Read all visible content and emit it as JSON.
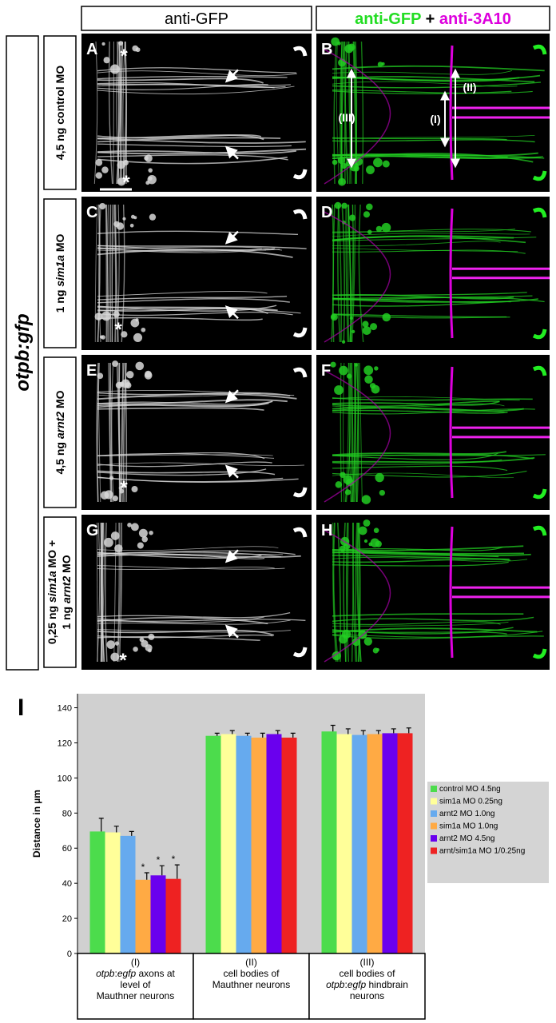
{
  "figure": {
    "column_headers": {
      "left": "anti-GFP",
      "right": [
        {
          "text": "anti-GFP",
          "color": "#22dd22"
        },
        {
          "text": " + ",
          "color": "#000000"
        },
        {
          "text": "anti-3A10",
          "color": "#dd00dd"
        }
      ]
    },
    "side_label": "otpb:gfp",
    "row_labels": [
      [
        [
          {
            "text": "4,5 ng control MO"
          }
        ]
      ],
      [
        [
          {
            "text": "1 ng "
          },
          {
            "text": "sim1a",
            "italic": true
          },
          {
            "text": " MO"
          }
        ]
      ],
      [
        [
          {
            "text": "4,5 ng "
          },
          {
            "text": "arnt2",
            "italic": true
          },
          {
            "text": " MO"
          }
        ]
      ],
      [
        [
          {
            "text": "0,25 ng "
          },
          {
            "text": "sim1a",
            "italic": true
          },
          {
            "text": " MO +"
          }
        ],
        [
          {
            "text": "1 ng "
          },
          {
            "text": "arnt2",
            "italic": true
          },
          {
            "text": " MO"
          }
        ]
      ]
    ],
    "panel_letters": [
      "A",
      "B",
      "C",
      "D",
      "E",
      "F",
      "G",
      "H"
    ],
    "panel_b_annotations": [
      "(III)",
      "(I)",
      "(II)"
    ],
    "asterisk": "*",
    "chart_label": "I"
  },
  "chart_data": {
    "type": "bar",
    "y_label": "Distance in µm",
    "categories": [
      [
        [
          {
            "text": "(I)"
          }
        ],
        [
          {
            "text": "otpb",
            "italic": true
          },
          {
            "text": ":"
          },
          {
            "text": "egfp",
            "italic": true
          },
          {
            "text": " axons at"
          }
        ],
        [
          {
            "text": "level of"
          }
        ],
        [
          {
            "text": "Mauthner neurons"
          }
        ]
      ],
      [
        [
          {
            "text": "(II)"
          }
        ],
        [
          {
            "text": "cell bodies of"
          }
        ],
        [
          {
            "text": "Mauthner neurons"
          }
        ]
      ],
      [
        [
          {
            "text": "(III)"
          }
        ],
        [
          {
            "text": "cell bodies of"
          }
        ],
        [
          {
            "text": "otpb",
            "italic": true
          },
          {
            "text": ":"
          },
          {
            "text": "egfp",
            "italic": true
          },
          {
            "text": " hindbrain"
          }
        ],
        [
          {
            "text": "neurons"
          }
        ]
      ]
    ],
    "series": [
      {
        "name": "control MO 4.5ng",
        "color": "#4cdc4c",
        "values": [
          69.5,
          124,
          126.5
        ],
        "errors": [
          7.5,
          1.5,
          3.5
        ]
      },
      {
        "name": "sim1a MO 0.25ng",
        "color": "#ffff99",
        "values": [
          69,
          125,
          125
        ],
        "errors": [
          3.5,
          2,
          3
        ]
      },
      {
        "name": "arnt2 MO 1.0ng",
        "color": "#66aaee",
        "values": [
          67,
          124,
          124.5
        ],
        "errors": [
          2.5,
          1.5,
          2.5
        ]
      },
      {
        "name": "sim1a MO 1.0ng",
        "color": "#ffaa44",
        "values": [
          42,
          123,
          125
        ],
        "errors": [
          4,
          2.5,
          2
        ]
      },
      {
        "name": "arnt2 MO 4.5ng",
        "color": "#6a00ee",
        "values": [
          44.5,
          125,
          125.5
        ],
        "errors": [
          5.5,
          2,
          2.5
        ]
      },
      {
        "name": "arnt/sim1a MO 1/0.25ng",
        "color": "#ee2222",
        "values": [
          42.5,
          123,
          125.5
        ],
        "errors": [
          8,
          2.5,
          3
        ]
      }
    ],
    "annotations": [
      {
        "text": "*",
        "series": 3,
        "category": 0
      },
      {
        "text": "*",
        "series": 4,
        "category": 0
      },
      {
        "text": "*",
        "series": 5,
        "category": 0
      }
    ],
    "ylim": [
      0,
      148
    ],
    "yticks": [
      0,
      20,
      40,
      60,
      80,
      100,
      120,
      140
    ],
    "grid": false,
    "background": "#d0d0d0",
    "legend": "right"
  }
}
